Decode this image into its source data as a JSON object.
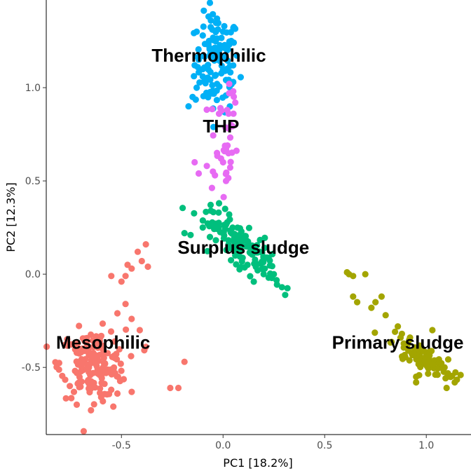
{
  "chart_data": {
    "type": "scatter",
    "title": "",
    "xlabel": "PC1 [18.2%]",
    "ylabel": "PC2 [12.3%]",
    "xlim": [
      -0.87,
      1.22
    ],
    "ylim": [
      -0.86,
      1.47
    ],
    "grid": false,
    "legend": "none",
    "x_ticks": [
      {
        "value": -0.5,
        "label": "-0.5"
      },
      {
        "value": 0.0,
        "label": "0.0"
      },
      {
        "value": 0.5,
        "label": "0.5"
      },
      {
        "value": 1.0,
        "label": "1.0"
      }
    ],
    "y_ticks": [
      {
        "value": -0.5,
        "label": "-0.5"
      },
      {
        "value": 0.0,
        "label": "0.0"
      },
      {
        "value": 0.5,
        "label": "0.5"
      },
      {
        "value": 1.0,
        "label": "1.0"
      }
    ],
    "series": [
      {
        "name": "Thermophilic",
        "color": "#00B0F6",
        "label_at": [
          -0.07,
          1.14
        ],
        "center": [
          -0.03,
          1.13
        ],
        "spread": [
          0.055,
          0.13
        ],
        "n": 110,
        "points": [
          [
            -0.06,
            1.36
          ],
          [
            -0.03,
            1.37
          ],
          [
            0.0,
            1.3
          ],
          [
            -0.13,
            1.3
          ],
          [
            -0.1,
            1.28
          ],
          [
            -0.12,
            1.15
          ],
          [
            -0.1,
            1.06
          ],
          [
            -0.13,
            1.0
          ],
          [
            -0.15,
            0.95
          ],
          [
            -0.17,
            0.9
          ],
          [
            0.01,
            1.09
          ],
          [
            -0.03,
            1.02
          ],
          [
            0.02,
            1.2
          ],
          [
            0.04,
            1.25
          ]
        ]
      },
      {
        "name": "THP",
        "color": "#E76BF3",
        "label_at": [
          -0.01,
          0.76
        ],
        "center": [
          0.0,
          0.7
        ],
        "spread": [
          0.035,
          0.17
        ],
        "n": 30,
        "points": [
          [
            0.03,
            1.02
          ],
          [
            0.05,
            0.98
          ],
          [
            0.06,
            0.92
          ],
          [
            0.02,
            0.88
          ],
          [
            -0.02,
            0.86
          ],
          [
            0.03,
            0.97
          ],
          [
            -0.03,
            0.65
          ],
          [
            -0.01,
            0.62
          ],
          [
            -0.08,
            0.58
          ],
          [
            -0.05,
            0.55
          ],
          [
            0.0,
            0.6
          ],
          [
            -0.14,
            0.6
          ],
          [
            -0.12,
            0.54
          ],
          [
            -0.04,
            0.53
          ]
        ]
      },
      {
        "name": "Surplus sludge",
        "color": "#00BF7D",
        "label_at": [
          0.1,
          0.11
        ],
        "center": [
          0.08,
          0.17
        ],
        "spread": [
          0.09,
          0.09
        ],
        "n": 130,
        "points": [
          [
            -0.02,
            0.38
          ],
          [
            0.01,
            0.35
          ],
          [
            -0.06,
            0.34
          ],
          [
            0.03,
            0.32
          ],
          [
            -0.19,
            0.22
          ],
          [
            -0.16,
            0.21
          ],
          [
            -0.1,
            0.25
          ],
          [
            0.25,
            0.0
          ],
          [
            0.29,
            -0.07
          ],
          [
            0.24,
            -0.02
          ],
          [
            0.12,
            0.05
          ],
          [
            0.17,
            0.02
          ],
          [
            0.2,
            0.08
          ],
          [
            0.06,
            0.1
          ]
        ]
      },
      {
        "name": "Mesophilic",
        "color": "#F8766D",
        "label_at": [
          -0.59,
          -0.4
        ],
        "center": [
          -0.64,
          -0.48
        ],
        "spread": [
          0.08,
          0.09
        ],
        "n": 175,
        "points": [
          [
            -0.38,
            0.16
          ],
          [
            -0.42,
            0.12
          ],
          [
            -0.4,
            0.07
          ],
          [
            -0.47,
            0.05
          ],
          [
            -0.45,
            0.03
          ],
          [
            -0.37,
            0.04
          ],
          [
            -0.55,
            -0.01
          ],
          [
            -0.48,
            -0.01
          ],
          [
            -0.5,
            -0.04
          ],
          [
            -0.48,
            -0.16
          ],
          [
            -0.52,
            -0.21
          ],
          [
            -0.45,
            -0.24
          ],
          [
            -0.41,
            -0.3
          ],
          [
            -0.38,
            -0.39
          ],
          [
            -0.19,
            -0.47
          ],
          [
            -0.26,
            -0.61
          ],
          [
            -0.22,
            -0.61
          ],
          [
            -0.72,
            -0.7
          ],
          [
            -0.54,
            -0.71
          ],
          [
            -0.65,
            -0.73
          ],
          [
            -0.52,
            -0.64
          ],
          [
            -0.6,
            -0.66
          ]
        ]
      },
      {
        "name": "Primary sludge",
        "color": "#A3A500",
        "label_at": [
          0.86,
          -0.4
        ],
        "center": [
          0.98,
          -0.45
        ],
        "spread": [
          0.045,
          0.045
        ],
        "n": 85,
        "points": [
          [
            0.61,
            0.01
          ],
          [
            0.64,
            -0.01
          ],
          [
            0.62,
            0.0
          ],
          [
            0.7,
            0.0
          ],
          [
            0.64,
            -0.12
          ],
          [
            0.66,
            -0.15
          ],
          [
            0.75,
            -0.15
          ],
          [
            0.73,
            -0.18
          ],
          [
            0.78,
            -0.12
          ],
          [
            0.8,
            -0.22
          ],
          [
            0.86,
            -0.28
          ],
          [
            0.88,
            -0.32
          ],
          [
            0.92,
            -0.34
          ],
          [
            1.03,
            -0.3
          ],
          [
            1.06,
            -0.48
          ],
          [
            1.09,
            -0.5
          ],
          [
            1.14,
            -0.58
          ],
          [
            0.95,
            -0.55
          ],
          [
            0.95,
            -0.58
          ],
          [
            1.1,
            -0.61
          ]
        ]
      }
    ]
  }
}
